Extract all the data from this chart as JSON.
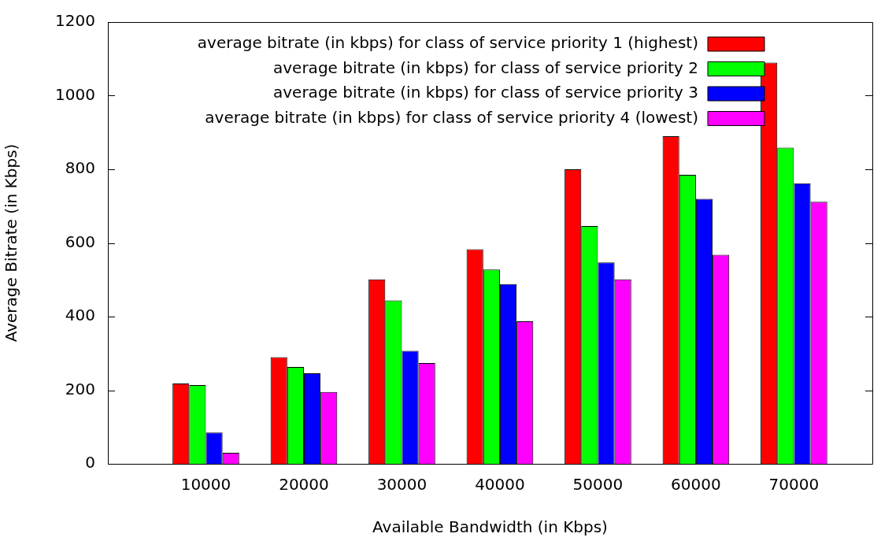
{
  "chart_data": {
    "type": "bar",
    "xlabel": "Available Bandwidth (in Kbps)",
    "ylabel": "Average Bitrate (in Kbps)",
    "x": [
      10000,
      20000,
      30000,
      40000,
      50000,
      60000,
      70000
    ],
    "xlim": [
      0,
      78000
    ],
    "xticks": [
      10000,
      20000,
      30000,
      40000,
      50000,
      60000,
      70000
    ],
    "ylim": [
      0,
      1200
    ],
    "yticks": [
      0,
      200,
      400,
      600,
      800,
      1000,
      1200
    ],
    "grid": false,
    "legend": "top right",
    "series": [
      {
        "name": "average bitrate (in kbps) for class of service priority 1 (highest)",
        "color": "#ff0000",
        "values": [
          218,
          290,
          501,
          583,
          800,
          890,
          1090
        ]
      },
      {
        "name": "average bitrate (in kbps) for class of service priority 2",
        "color": "#00ff00",
        "values": [
          214,
          263,
          444,
          528,
          646,
          785,
          859
        ]
      },
      {
        "name": "average bitrate (in kbps) for class of service priority 3",
        "color": "#0000ff",
        "values": [
          85,
          246,
          307,
          488,
          547,
          720,
          762
        ]
      },
      {
        "name": "average bitrate (in kbps) for class of service priority 4 (lowest)",
        "color": "#ff00ff",
        "values": [
          30,
          195,
          274,
          387,
          501,
          568,
          712
        ]
      }
    ]
  }
}
